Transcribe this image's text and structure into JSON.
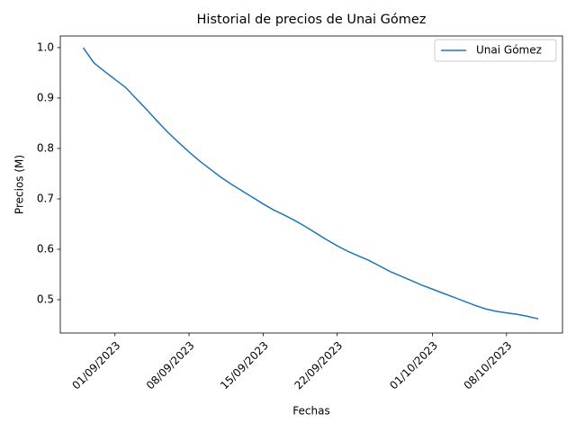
{
  "chart_data": {
    "type": "line",
    "title": "Historial de precios de Unai Gómez",
    "xlabel": "Fechas",
    "ylabel": "Precios (M)",
    "x": [
      "2023-08-29",
      "2023-08-30",
      "2023-08-31",
      "2023-09-01",
      "2023-09-02",
      "2023-09-03",
      "2023-09-04",
      "2023-09-05",
      "2023-09-06",
      "2023-09-07",
      "2023-09-08",
      "2023-09-09",
      "2023-09-10",
      "2023-09-11",
      "2023-09-12",
      "2023-09-13",
      "2023-09-14",
      "2023-09-15",
      "2023-09-16",
      "2023-09-17",
      "2023-09-18",
      "2023-09-19",
      "2023-09-20",
      "2023-09-21",
      "2023-09-22",
      "2023-09-23",
      "2023-09-24",
      "2023-09-25",
      "2023-09-26",
      "2023-09-27",
      "2023-09-28",
      "2023-09-29",
      "2023-09-30",
      "2023-10-01",
      "2023-10-02",
      "2023-10-03",
      "2023-10-04",
      "2023-10-05",
      "2023-10-06",
      "2023-10-07",
      "2023-10-08",
      "2023-10-09",
      "2023-10-10",
      "2023-10-11"
    ],
    "series": [
      {
        "name": "Unai Gómez",
        "color": "#1f77b4",
        "values": [
          1.0,
          0.97,
          0.953,
          0.937,
          0.921,
          0.899,
          0.877,
          0.854,
          0.832,
          0.812,
          0.793,
          0.775,
          0.759,
          0.743,
          0.729,
          0.716,
          0.703,
          0.69,
          0.678,
          0.668,
          0.657,
          0.645,
          0.632,
          0.619,
          0.607,
          0.596,
          0.587,
          0.578,
          0.567,
          0.556,
          0.547,
          0.538,
          0.529,
          0.521,
          0.513,
          0.505,
          0.497,
          0.489,
          0.482,
          0.477,
          0.474,
          0.471,
          0.467,
          0.462
        ]
      }
    ],
    "xlim": [
      "2023-08-26T20:00:00Z",
      "2023-10-13T07:00:00Z"
    ],
    "xticks": [
      {
        "value": "2023-09-01",
        "label": "01/09/2023"
      },
      {
        "value": "2023-09-08",
        "label": "08/09/2023"
      },
      {
        "value": "2023-09-15",
        "label": "15/09/2023"
      },
      {
        "value": "2023-09-22",
        "label": "22/09/2023"
      },
      {
        "value": "2023-10-01",
        "label": "01/10/2023"
      },
      {
        "value": "2023-10-08",
        "label": "08/10/2023"
      }
    ],
    "ylim": [
      0.434,
      1.023
    ],
    "yticks": [
      0.5,
      0.6,
      0.7,
      0.8,
      0.9,
      {
        "value": 1,
        "label": "1.0"
      }
    ],
    "legend": "upper right",
    "grid": false
  }
}
